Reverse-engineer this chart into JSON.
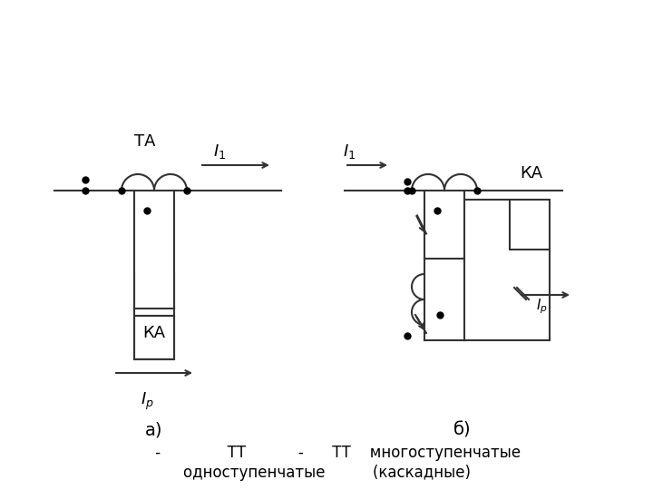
{
  "bg_color": "#ffffff",
  "line_color": "#333333",
  "dot_color": "#000000",
  "fig_width": 7.2,
  "fig_height": 5.4,
  "label_a": "а)",
  "label_b": "б)",
  "text_TA": "ТА",
  "text_KA_a": "КА",
  "text_KA_b": "КА",
  "text_I1": "I",
  "text_Ir": "I",
  "text_bottom": "     -              ТТ           -      ТТ    многоступенчатые",
  "text_bottom2": "одноступенчатые          (каскадные)"
}
